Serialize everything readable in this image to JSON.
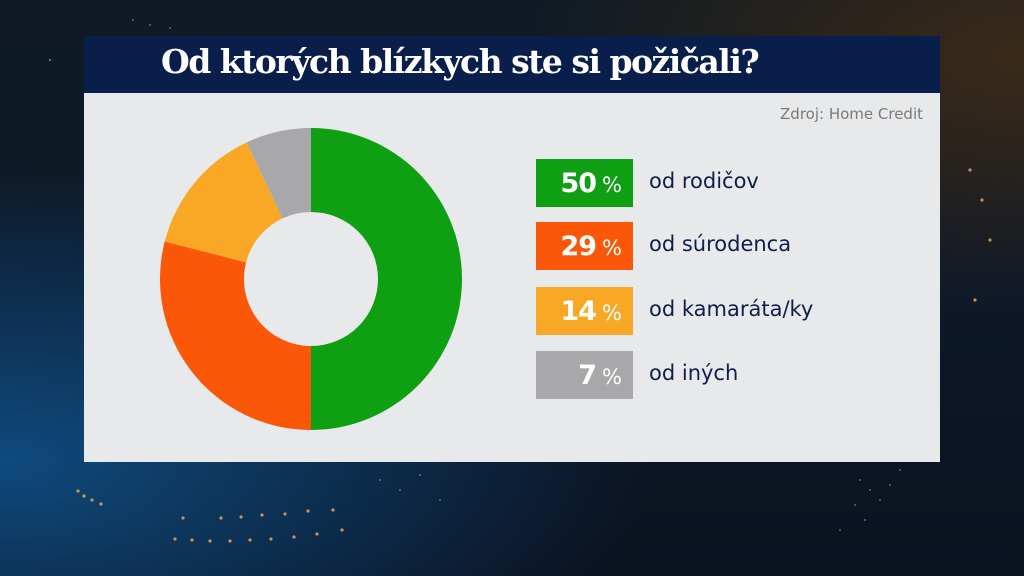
{
  "header": {
    "title": "Od ktorých blízkych ste si požičali?"
  },
  "source": "Zdroj: Home Credit",
  "legend": [
    {
      "value": "50",
      "pct": "%",
      "label": "od rodičov",
      "color": "#0e9f12"
    },
    {
      "value": "29",
      "pct": "%",
      "label": "od súrodenca",
      "color": "#fa5708"
    },
    {
      "value": "14",
      "pct": "%",
      "label": "od kamaráta/ky",
      "color": "#f9a825"
    },
    {
      "value": "7",
      "pct": "%",
      "label": "od iných",
      "color": "#a8a8aa"
    }
  ],
  "colors": {
    "header_bg": "#0a1e4b",
    "panel_bg": "#e8e9eb",
    "label_text": "#0d1f4a",
    "source_text": "#7a7a7a"
  },
  "chart_data": {
    "type": "pie",
    "variant": "donut",
    "title": "Od ktorých blízkych ste si požičali?",
    "source": "Zdroj: Home Credit",
    "categories": [
      "od rodičov",
      "od súrodenca",
      "od kamaráta/ky",
      "od iných"
    ],
    "values": [
      50,
      29,
      14,
      7
    ],
    "unit": "%",
    "colors": [
      "#0e9f12",
      "#fa5708",
      "#f9a825",
      "#a8a8aa"
    ],
    "start_angle": "12 o'clock, clockwise",
    "legend_position": "right"
  }
}
